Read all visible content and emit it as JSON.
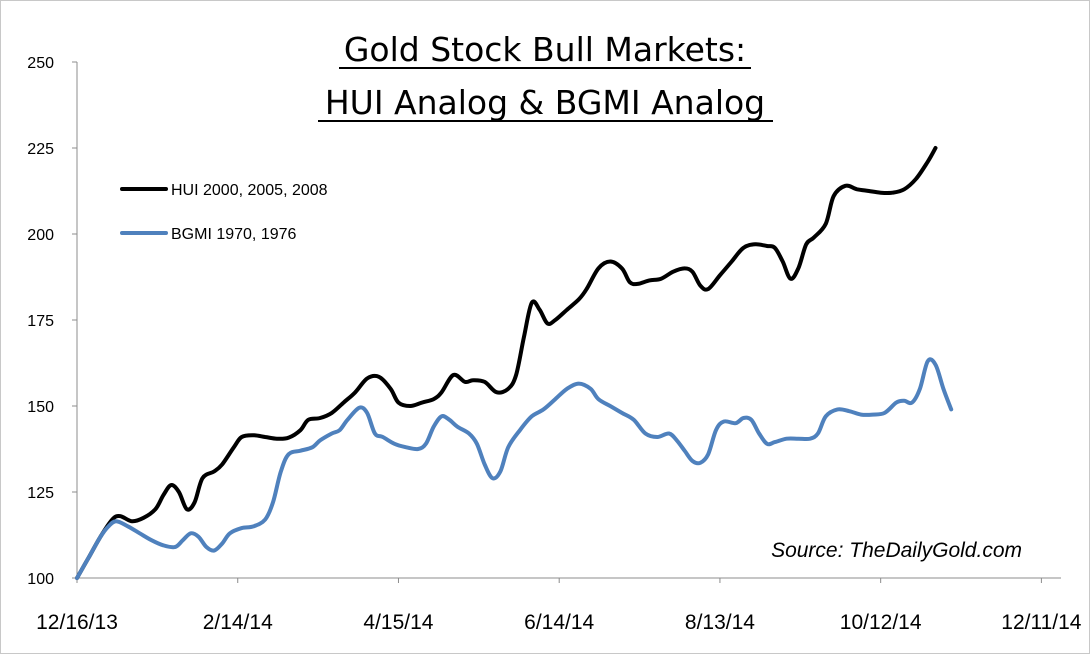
{
  "chart_data": {
    "type": "line",
    "title_lines": [
      "Gold Stock Bull Markets:",
      "HUI Analog & BGMI Analog"
    ],
    "xlabel": "",
    "ylabel": "",
    "ylim": [
      100,
      250
    ],
    "yticks": [
      100,
      125,
      150,
      175,
      200,
      225,
      250
    ],
    "xlim": [
      0,
      251
    ],
    "xticks": [
      {
        "pos": 0,
        "label": "12/16/13"
      },
      {
        "pos": 41,
        "label": "2/14/14"
      },
      {
        "pos": 82,
        "label": "4/15/14"
      },
      {
        "pos": 123,
        "label": "6/14/14"
      },
      {
        "pos": 164,
        "label": "8/13/14"
      },
      {
        "pos": 205,
        "label": "10/12/14"
      },
      {
        "pos": 246,
        "label": "12/11/14"
      }
    ],
    "grid": false,
    "legend_position": "top-left",
    "source": "Source: TheDailyGold.com",
    "series": [
      {
        "name": "HUI 2000, 2005, 2008",
        "color": "#000000",
        "points": [
          [
            0,
            100
          ],
          [
            3,
            106
          ],
          [
            6,
            112
          ],
          [
            9,
            117
          ],
          [
            11,
            118
          ],
          [
            14,
            116.5
          ],
          [
            17,
            117.5
          ],
          [
            20,
            120
          ],
          [
            22,
            124
          ],
          [
            24,
            127
          ],
          [
            26,
            125
          ],
          [
            28,
            120
          ],
          [
            30,
            122
          ],
          [
            32,
            129
          ],
          [
            35,
            131
          ],
          [
            37,
            133
          ],
          [
            40,
            138
          ],
          [
            42,
            141
          ],
          [
            45,
            141.5
          ],
          [
            48,
            141
          ],
          [
            51,
            140.5
          ],
          [
            54,
            140.8
          ],
          [
            57,
            143
          ],
          [
            59,
            146
          ],
          [
            62,
            146.5
          ],
          [
            65,
            148
          ],
          [
            68,
            151
          ],
          [
            71,
            154
          ],
          [
            74,
            158
          ],
          [
            77,
            158.5
          ],
          [
            80,
            155
          ],
          [
            82,
            151
          ],
          [
            85,
            150
          ],
          [
            88,
            151
          ],
          [
            91,
            152
          ],
          [
            93,
            154
          ],
          [
            96,
            159
          ],
          [
            99,
            157
          ],
          [
            101,
            157.5
          ],
          [
            104,
            157
          ],
          [
            107,
            154
          ],
          [
            110,
            155
          ],
          [
            112,
            159
          ],
          [
            114,
            170
          ],
          [
            116,
            180
          ],
          [
            118,
            178
          ],
          [
            120,
            174
          ],
          [
            122,
            175
          ],
          [
            125,
            178
          ],
          [
            128,
            181
          ],
          [
            130,
            184
          ],
          [
            133,
            190
          ],
          [
            136,
            192
          ],
          [
            139,
            190
          ],
          [
            141,
            186
          ],
          [
            143,
            185.5
          ],
          [
            146,
            186.5
          ],
          [
            149,
            187
          ],
          [
            152,
            189
          ],
          [
            155,
            190
          ],
          [
            157,
            189
          ],
          [
            159,
            185
          ],
          [
            161,
            184
          ],
          [
            164,
            188
          ],
          [
            167,
            192
          ],
          [
            170,
            196
          ],
          [
            173,
            197
          ],
          [
            176,
            196.5
          ],
          [
            178,
            196
          ],
          [
            180,
            192
          ],
          [
            182,
            187
          ],
          [
            184,
            190
          ],
          [
            186,
            197
          ],
          [
            188,
            199
          ],
          [
            191,
            203
          ],
          [
            193,
            211
          ],
          [
            196,
            214
          ],
          [
            199,
            213
          ],
          [
            202,
            212.5
          ],
          [
            205,
            212
          ],
          [
            208,
            212
          ],
          [
            211,
            213
          ],
          [
            214,
            216
          ],
          [
            217,
            221
          ],
          [
            219,
            225
          ]
        ]
      },
      {
        "name": "BGMI 1970, 1976",
        "color": "#4f81bd",
        "points": [
          [
            0,
            100
          ],
          [
            3,
            106
          ],
          [
            6,
            112
          ],
          [
            8,
            115
          ],
          [
            10,
            116.5
          ],
          [
            13,
            115
          ],
          [
            16,
            113
          ],
          [
            19,
            111
          ],
          [
            22,
            109.5
          ],
          [
            25,
            109
          ],
          [
            27,
            111
          ],
          [
            29,
            113
          ],
          [
            31,
            112
          ],
          [
            33,
            109
          ],
          [
            35,
            108
          ],
          [
            37,
            110
          ],
          [
            39,
            113
          ],
          [
            42,
            114.5
          ],
          [
            45,
            115
          ],
          [
            48,
            117
          ],
          [
            50,
            122
          ],
          [
            52,
            131
          ],
          [
            54,
            136
          ],
          [
            57,
            137
          ],
          [
            60,
            138
          ],
          [
            62,
            140
          ],
          [
            65,
            142
          ],
          [
            67,
            143
          ],
          [
            69,
            146
          ],
          [
            72,
            149.5
          ],
          [
            74,
            148
          ],
          [
            76,
            142
          ],
          [
            78,
            141
          ],
          [
            81,
            139
          ],
          [
            84,
            138
          ],
          [
            87,
            137.5
          ],
          [
            89,
            139
          ],
          [
            91,
            144
          ],
          [
            93,
            147
          ],
          [
            95,
            146
          ],
          [
            97,
            144
          ],
          [
            100,
            142
          ],
          [
            102,
            139
          ],
          [
            104,
            133
          ],
          [
            106,
            129
          ],
          [
            108,
            131
          ],
          [
            110,
            138
          ],
          [
            113,
            143
          ],
          [
            116,
            147
          ],
          [
            119,
            149
          ],
          [
            122,
            152
          ],
          [
            125,
            155
          ],
          [
            128,
            156.5
          ],
          [
            131,
            155
          ],
          [
            133,
            152
          ],
          [
            136,
            150
          ],
          [
            139,
            148
          ],
          [
            142,
            146
          ],
          [
            145,
            142
          ],
          [
            148,
            141
          ],
          [
            151,
            142
          ],
          [
            153,
            140
          ],
          [
            155,
            137
          ],
          [
            157,
            134
          ],
          [
            159,
            133.5
          ],
          [
            161,
            136
          ],
          [
            163,
            143
          ],
          [
            165,
            145.5
          ],
          [
            168,
            145
          ],
          [
            170,
            146.5
          ],
          [
            172,
            146
          ],
          [
            174,
            142
          ],
          [
            176,
            139
          ],
          [
            178,
            139.5
          ],
          [
            181,
            140.5
          ],
          [
            184,
            140.5
          ],
          [
            187,
            140.5
          ],
          [
            189,
            142
          ],
          [
            191,
            147
          ],
          [
            194,
            149
          ],
          [
            197,
            148.5
          ],
          [
            200,
            147.5
          ],
          [
            203,
            147.5
          ],
          [
            206,
            148
          ],
          [
            209,
            151
          ],
          [
            211,
            151.5
          ],
          [
            213,
            151
          ],
          [
            215,
            155
          ],
          [
            217,
            163
          ],
          [
            219,
            162
          ],
          [
            221,
            155
          ],
          [
            223,
            149
          ]
        ]
      }
    ]
  }
}
